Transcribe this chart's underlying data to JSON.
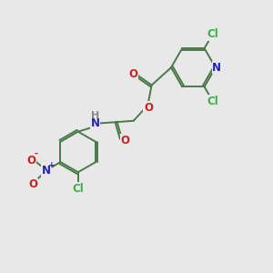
{
  "background_color": "#e8e8e8",
  "bond_color": "#4a7a4a",
  "atom_colors": {
    "Cl": "#3cb043",
    "N": "#2222bb",
    "O": "#cc2020",
    "H": "#888888",
    "C": "#4a7a4a"
  }
}
